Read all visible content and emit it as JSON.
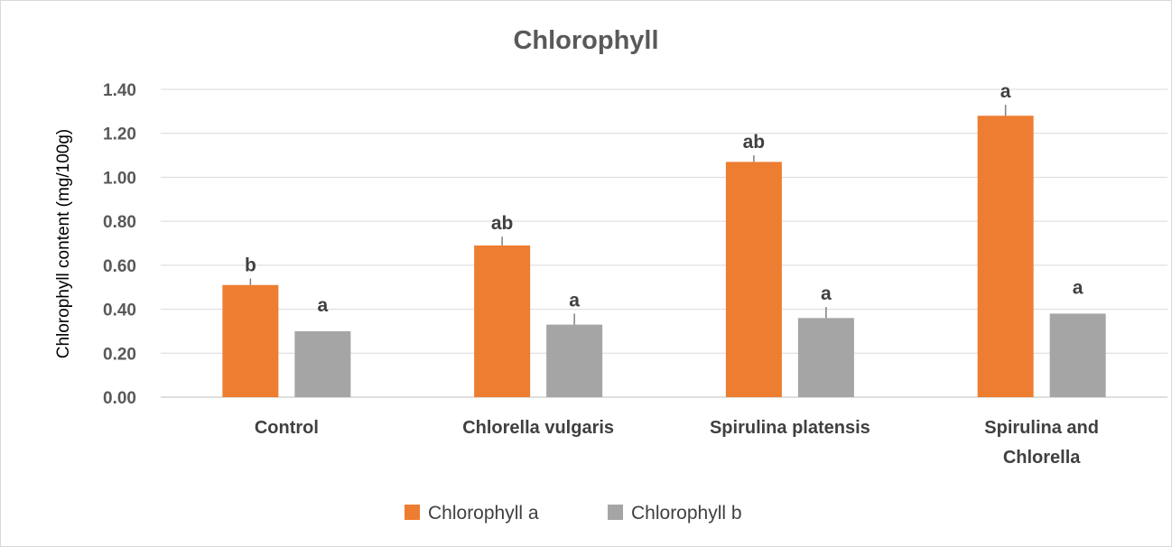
{
  "chart_data": {
    "type": "bar",
    "title": "Chlorophyll",
    "ylabel": "Chlorophyll content (mg/100g)",
    "xlabel": "",
    "ylim": [
      0,
      1.4
    ],
    "yticks": [
      "0.00",
      "0.20",
      "0.40",
      "0.60",
      "0.80",
      "1.00",
      "1.20",
      "1.40"
    ],
    "ytick_values": [
      0,
      0.2,
      0.4,
      0.6,
      0.8,
      1.0,
      1.2,
      1.4
    ],
    "grid": true,
    "legend_position": "bottom",
    "categories": [
      [
        "Control"
      ],
      [
        "Chlorella vulgaris"
      ],
      [
        "Spirulina platensis"
      ],
      [
        "Spirulina and",
        "Chlorella"
      ]
    ],
    "series": [
      {
        "name": "Chlorophyll a",
        "color": "#ed7d31",
        "values": [
          0.51,
          0.69,
          1.07,
          1.28
        ],
        "errors": [
          0.03,
          0.04,
          0.03,
          0.05
        ],
        "labels": [
          "b",
          "ab",
          "ab",
          "a"
        ]
      },
      {
        "name": "Chlorophyll b",
        "color": "#a5a5a5",
        "values": [
          0.3,
          0.33,
          0.36,
          0.38
        ],
        "errors": [
          0.0,
          0.05,
          0.05,
          0.0
        ],
        "labels": [
          "a",
          "a",
          "a",
          "a"
        ]
      }
    ]
  }
}
